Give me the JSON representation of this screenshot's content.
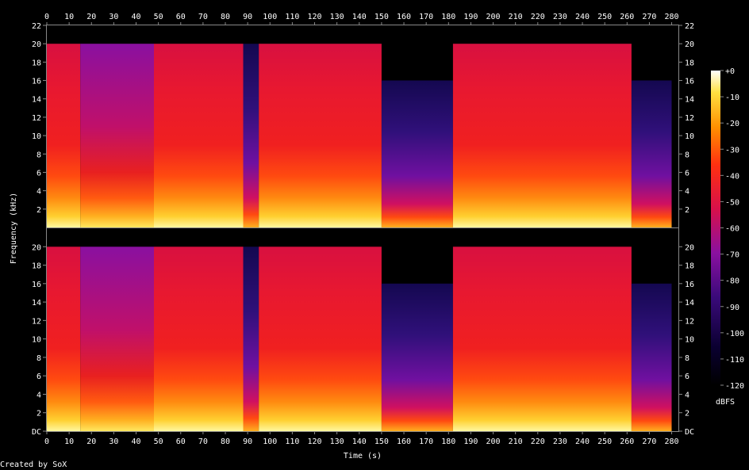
{
  "chart_data": {
    "type": "heatmap",
    "xlabel": "Time (s)",
    "ylabel": "Frequency (kHz)",
    "x_ticks": [
      "0",
      "10",
      "20",
      "30",
      "40",
      "50",
      "60",
      "70",
      "80",
      "90",
      "100",
      "110",
      "120",
      "130",
      "140",
      "150",
      "160",
      "170",
      "180",
      "190",
      "200",
      "210",
      "220",
      "230",
      "240",
      "250",
      "260",
      "270",
      "280"
    ],
    "xlim": [
      0,
      283
    ],
    "y_ticks_upper": [
      "2",
      "4",
      "6",
      "8",
      "10",
      "12",
      "14",
      "16",
      "18",
      "20",
      "22"
    ],
    "y_ticks_lower": [
      "DC",
      "2",
      "4",
      "6",
      "8",
      "10",
      "12",
      "14",
      "16",
      "18",
      "20"
    ],
    "ylim": [
      0,
      22
    ],
    "colorbar": {
      "label": "dBFS",
      "ticks": [
        "+0",
        "-10",
        "-20",
        "-30",
        "-40",
        "-50",
        "-60",
        "-70",
        "-80",
        "-90",
        "-100",
        "-110",
        "-120"
      ],
      "range": [
        -120,
        0
      ]
    },
    "channels": 2,
    "segments": [
      {
        "t0": 0,
        "t1": 15,
        "cutoff_khz": 20,
        "level": "loud"
      },
      {
        "t0": 15,
        "t1": 35,
        "cutoff_khz": 20,
        "level": "medium"
      },
      {
        "t0": 35,
        "t1": 48,
        "cutoff_khz": 20,
        "level": "medium"
      },
      {
        "t0": 48,
        "t1": 88,
        "cutoff_khz": 20,
        "level": "loud"
      },
      {
        "t0": 88,
        "t1": 95,
        "cutoff_khz": 20,
        "level": "quiet"
      },
      {
        "t0": 95,
        "t1": 150,
        "cutoff_khz": 20,
        "level": "loud"
      },
      {
        "t0": 150,
        "t1": 182,
        "cutoff_khz": 16,
        "level": "quiet"
      },
      {
        "t0": 182,
        "t1": 262,
        "cutoff_khz": 20,
        "level": "loud"
      },
      {
        "t0": 262,
        "t1": 280,
        "cutoff_khz": 16,
        "level": "quiet"
      }
    ]
  },
  "footer": {
    "credit": "Created by SoX"
  }
}
